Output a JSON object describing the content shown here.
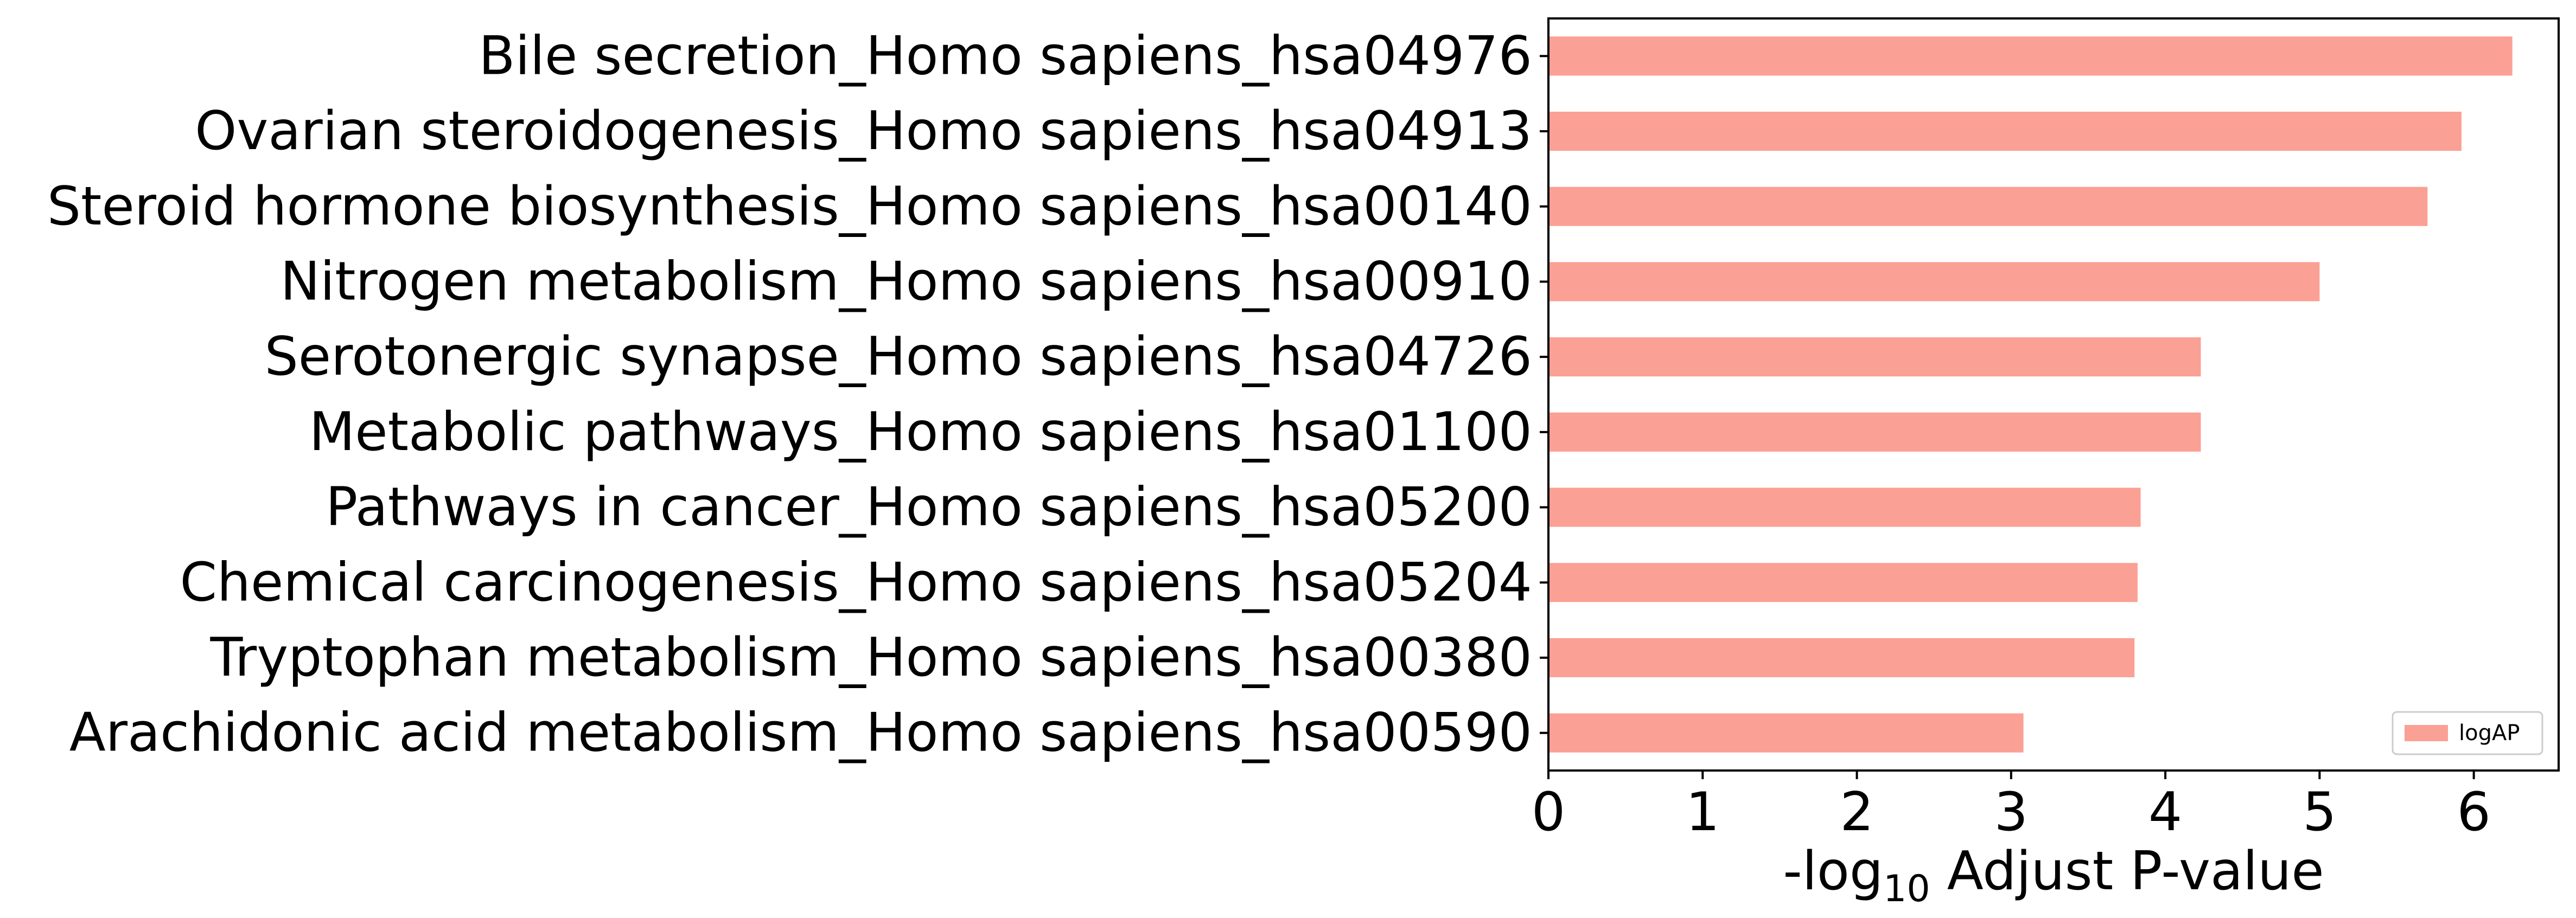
{
  "chart_data": {
    "type": "bar",
    "orientation": "horizontal",
    "categories": [
      "Bile secretion_Homo sapiens_hsa04976",
      "Ovarian steroidogenesis_Homo sapiens_hsa04913",
      "Steroid hormone biosynthesis_Homo sapiens_hsa00140",
      "Nitrogen metabolism_Homo sapiens_hsa00910",
      "Serotonergic synapse_Homo sapiens_hsa04726",
      "Metabolic pathways_Homo sapiens_hsa01100",
      "Pathways in cancer_Homo sapiens_hsa05200",
      "Chemical carcinogenesis_Homo sapiens_hsa05204",
      "Tryptophan metabolism_Homo sapiens_hsa00380",
      "Arachidonic acid metabolism_Homo sapiens_hsa00590"
    ],
    "series": [
      {
        "name": "logAP",
        "values": [
          6.25,
          5.92,
          5.7,
          5.0,
          4.23,
          4.23,
          3.84,
          3.82,
          3.8,
          3.08
        ],
        "color": "#fba094"
      }
    ],
    "xlabel": {
      "prefix": "-log",
      "subscript": "10",
      "suffix": " Adjust P-value"
    },
    "ylabel": "",
    "xlim": [
      0,
      6.55
    ],
    "xticks": [
      "0",
      "1",
      "2",
      "3",
      "4",
      "5",
      "6"
    ],
    "grid": false,
    "legend": {
      "position": "bottom-right",
      "entries": [
        "logAP"
      ]
    }
  }
}
